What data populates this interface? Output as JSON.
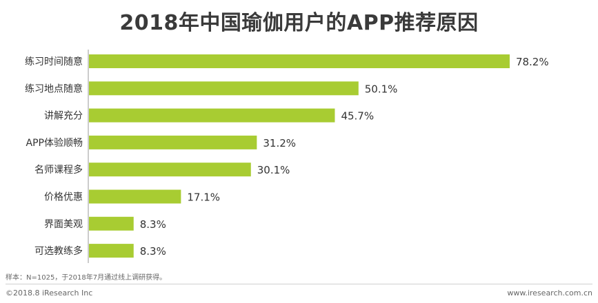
{
  "chart_data": {
    "type": "bar",
    "orientation": "horizontal",
    "title": "2018年中国瑜伽用户的APP推荐原因",
    "categories": [
      "练习时间随意",
      "练习地点随意",
      "讲解充分",
      "APP体验顺畅",
      "名师课程多",
      "价格优惠",
      "界面美观",
      "可选教练多"
    ],
    "values": [
      78.2,
      50.1,
      45.7,
      31.2,
      30.1,
      17.1,
      8.3,
      8.3
    ],
    "value_labels": [
      "78.2%",
      "50.1%",
      "45.7%",
      "31.2%",
      "30.1%",
      "17.1%",
      "8.3%",
      "8.3%"
    ],
    "xlim": [
      0,
      100
    ],
    "grid": false,
    "bar_color": "#a8cc32"
  },
  "note": "样本：N=1025，于2018年7月通过线上调研获得。",
  "footer": {
    "copyright": "©2018.8 iResearch Inc",
    "website": "www.iresearch.com.cn"
  }
}
